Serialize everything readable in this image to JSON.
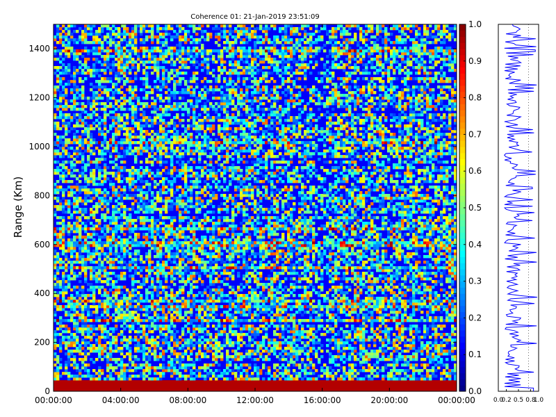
{
  "chart_data": {
    "type": "heatmap",
    "title": "Coherence 01: 21-Jan-2019 23:51:09",
    "ylabel": "Range (Km)",
    "xlabel": "",
    "x_tick_labels": [
      "00:00:00",
      "04:00:00",
      "08:00:00",
      "12:00:00",
      "16:00:00",
      "20:00:00",
      "00:00:00"
    ],
    "ylim": [
      0,
      1500
    ],
    "y_ticks": [
      0,
      200,
      400,
      600,
      800,
      1000,
      1200,
      1400
    ],
    "colorbar": {
      "colormap": "jet",
      "range": [
        0.0,
        1.0
      ],
      "ticks": [
        "0.0",
        "0.1",
        "0.2",
        "0.3",
        "0.4",
        "0.5",
        "0.6",
        "0.7",
        "0.8",
        "0.9",
        "1.0"
      ]
    },
    "side_profile": {
      "type": "line",
      "color": "#0000ff",
      "xlim": [
        0,
        1
      ],
      "x_tick_labels": [
        "0.0",
        "0.2",
        "0.5",
        "0.8",
        "1.0"
      ]
    },
    "grid": false
  }
}
